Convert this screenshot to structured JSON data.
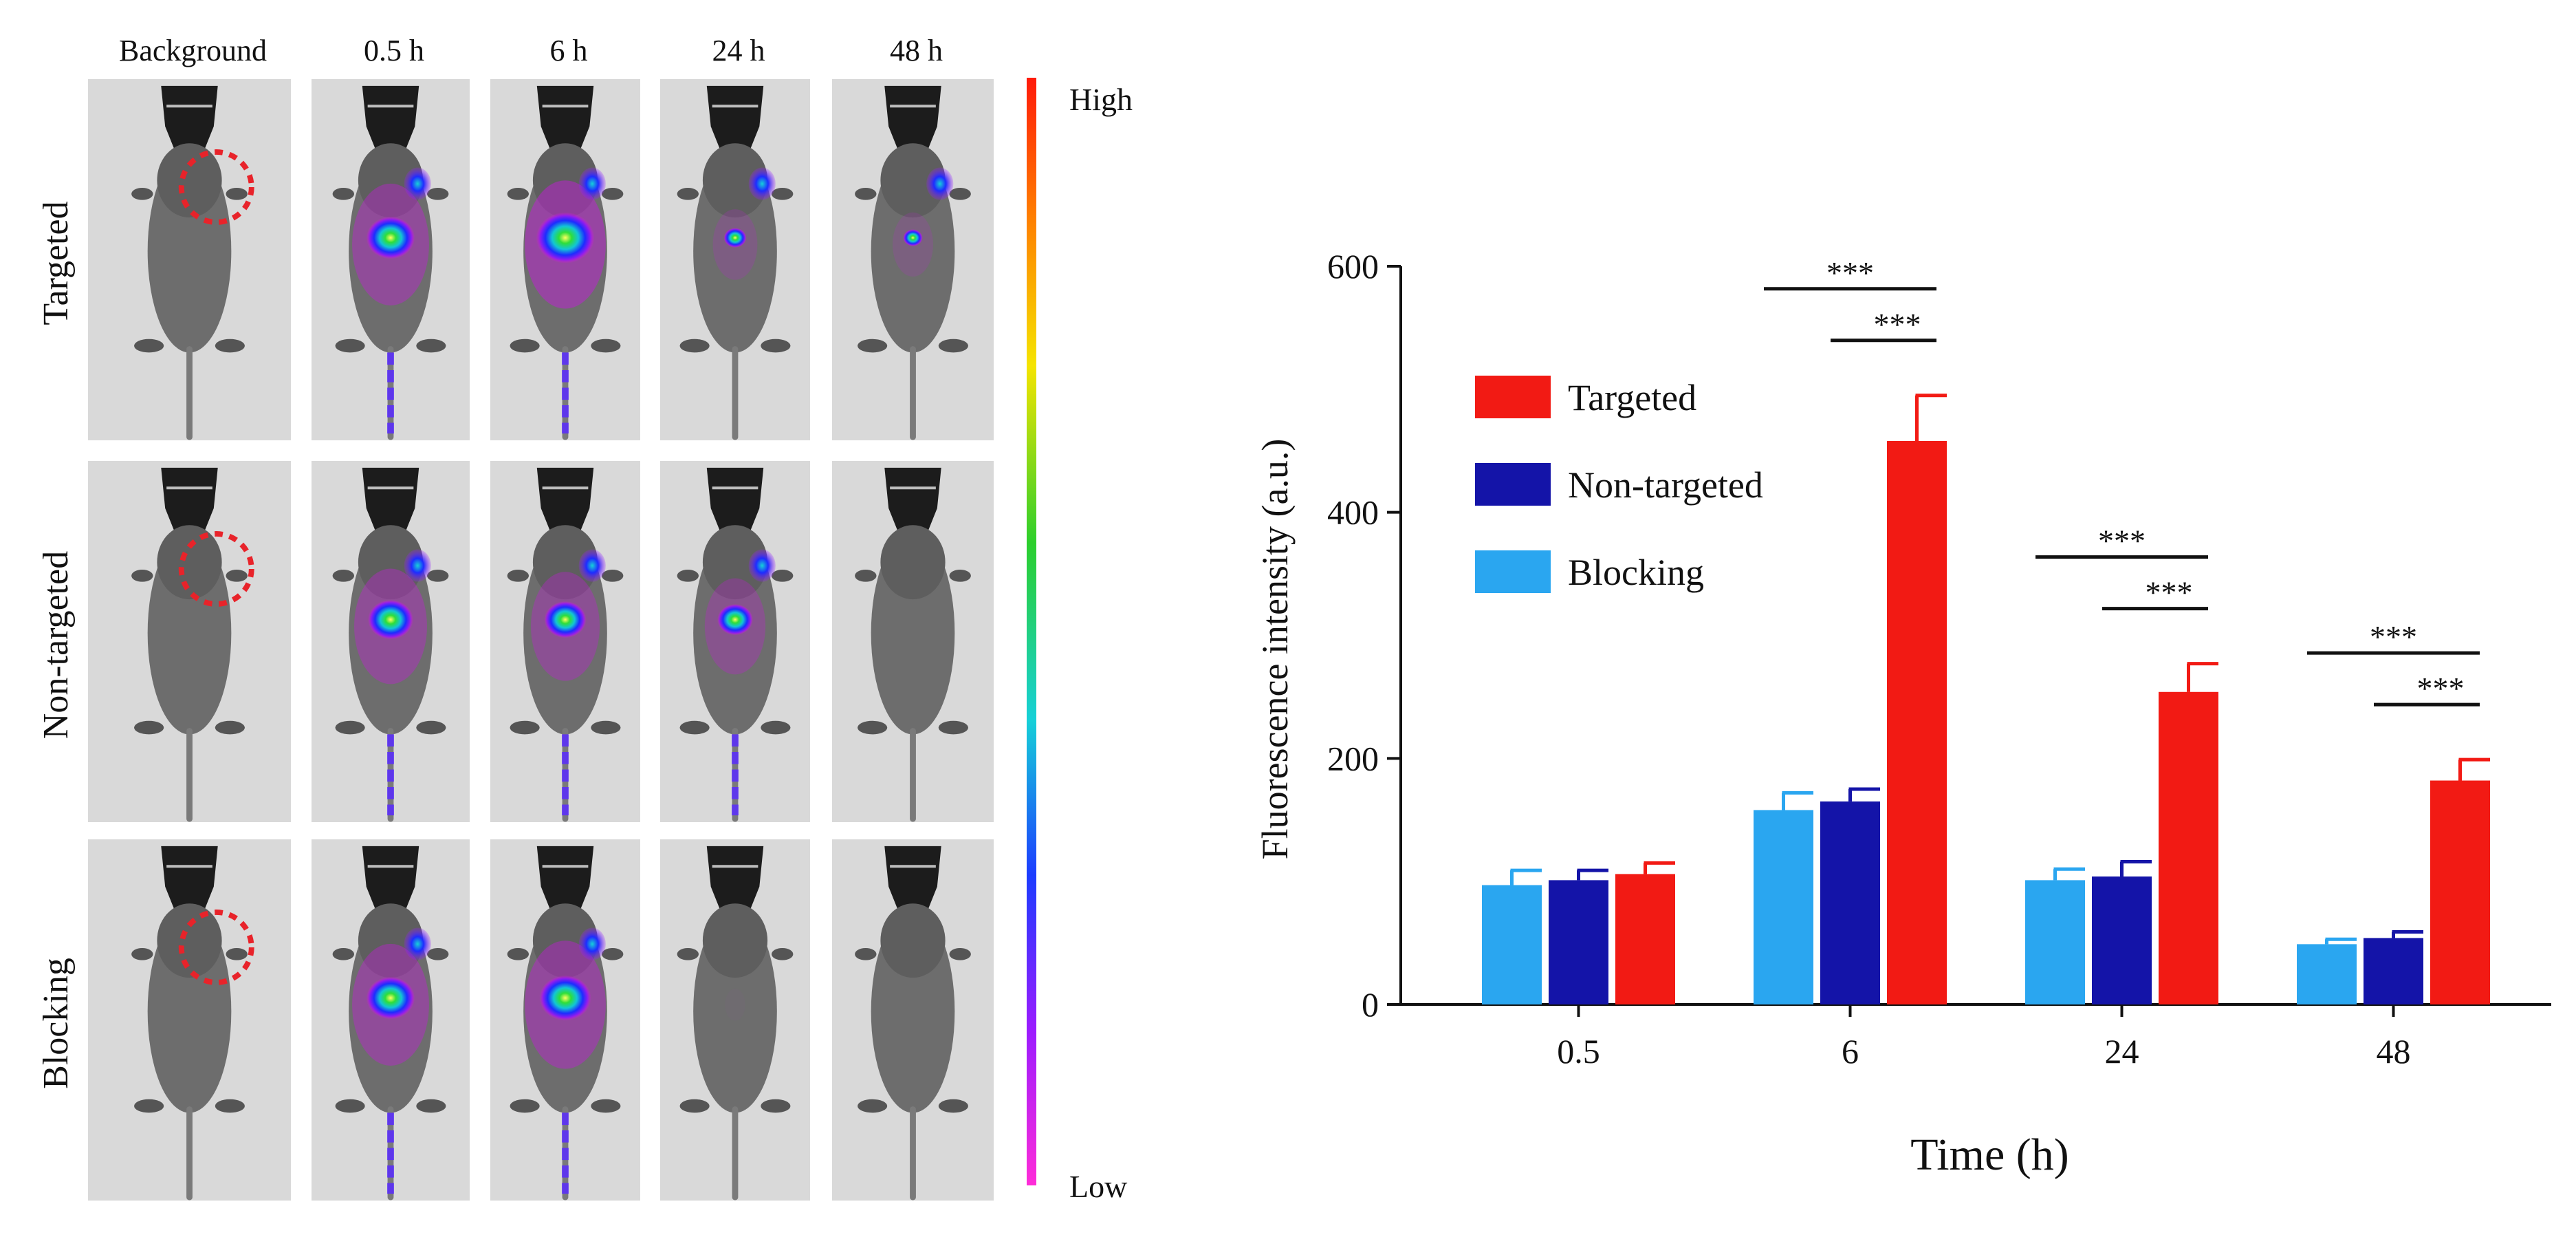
{
  "panel_a": {
    "time_labels": [
      "Background",
      "0.5 h",
      "6 h",
      "24 h",
      "48 h"
    ],
    "row_labels": [
      "Targeted",
      "Non-targeted",
      "Blocking"
    ],
    "colorbar": {
      "high_label": "High",
      "low_label": "Low"
    },
    "signal_colors": {
      "body_gray": "#6d6d6d",
      "tumor_ring": "#e8232a"
    },
    "signal_levels": [
      [
        0,
        0.75,
        0.9,
        0.35,
        0.3
      ],
      [
        0,
        0.7,
        0.65,
        0.55,
        0.0
      ],
      [
        0,
        0.75,
        0.8,
        0.05,
        0.0
      ]
    ]
  },
  "chart_data": {
    "type": "bar",
    "title": "",
    "xlabel": "Time (h)",
    "ylabel": "Fluorescence intensity (a.u.)",
    "categories": [
      "0.5",
      "6",
      "24",
      "48"
    ],
    "ylim": [
      0,
      600
    ],
    "yticks": [
      0,
      200,
      400,
      600
    ],
    "grid": false,
    "legend_position": "upper-left",
    "series": [
      {
        "name": "Blocking",
        "color": "#2aa6f0",
        "values": [
          97,
          158,
          101,
          49
        ],
        "errors": [
          12,
          14,
          9,
          4
        ]
      },
      {
        "name": "Non-targeted",
        "color": "#1414a8",
        "values": [
          101,
          165,
          104,
          54
        ],
        "errors": [
          8,
          10,
          12,
          5
        ]
      },
      {
        "name": "Targeted",
        "color": "#f21a14",
        "values": [
          106,
          458,
          254,
          182
        ],
        "errors": [
          9,
          37,
          23,
          17
        ]
      }
    ],
    "legend_order": [
      "Targeted",
      "Non-targeted",
      "Blocking"
    ],
    "significance": [
      {
        "category": "6",
        "label": "***",
        "level": "upper",
        "from": "Blocking",
        "to": "Targeted"
      },
      {
        "category": "6",
        "label": "***",
        "level": "lower",
        "from": "Non-targeted",
        "to": "Targeted"
      },
      {
        "category": "24",
        "label": "***",
        "level": "upper",
        "from": "Blocking",
        "to": "Targeted"
      },
      {
        "category": "24",
        "label": "***",
        "level": "lower",
        "from": "Non-targeted",
        "to": "Targeted"
      },
      {
        "category": "48",
        "label": "***",
        "level": "upper",
        "from": "Blocking",
        "to": "Targeted"
      },
      {
        "category": "48",
        "label": "***",
        "level": "lower",
        "from": "Non-targeted",
        "to": "Targeted"
      }
    ]
  }
}
